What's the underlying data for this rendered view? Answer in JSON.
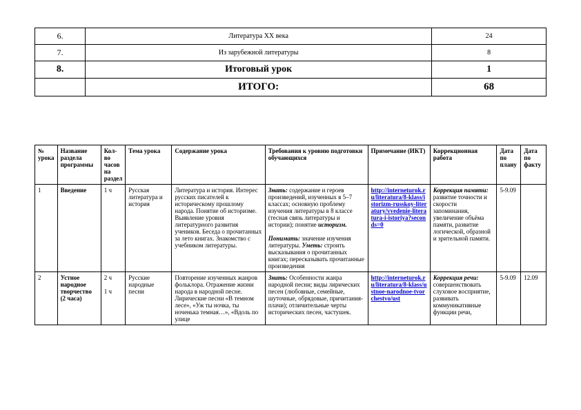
{
  "summary": {
    "rows": [
      {
        "num": "6.",
        "title": "Литература XX века",
        "count": "24",
        "bold": false,
        "small": true
      },
      {
        "num": "7.",
        "title": "Из зарубежной литературы",
        "count": "8",
        "bold": false,
        "small": true
      },
      {
        "num": "8.",
        "title": "Итоговый урок",
        "count": "1",
        "bold": true,
        "big": true
      },
      {
        "num": "",
        "title": "ИТОГО:",
        "count": "68",
        "bold": true,
        "big": true
      }
    ]
  },
  "detail": {
    "headers": [
      "№ урока",
      "Название раздела программы",
      "Кол-во часов на раздел",
      "Тема урока",
      "Содержание урока",
      "Требования к уровню подготовки обучающихся",
      "Примечание (ИКТ)",
      "Коррекционная работа",
      "Дата по плану",
      "Дата по факту"
    ],
    "rows": [
      {
        "num": "1",
        "section": "Введение",
        "hours": "1 ч",
        "topic": "Русская литература и история",
        "content": "Литература и история. Интерес русских писателей к историческому прошлому народа. Понятие об историзме. Выявление уровня литературного развития учеников. Беседа о прочитанных за лето книгах. Знакомство с учебником литературы.",
        "req_html": "<span class='ital'>Знать:</span> содержание и героев произведений, изученных в 5–7 классах; основную проблему изучения литературы в 8 классе (тесная связь литературы и истории); понятие <span class='ital'>историзм.</span><br><br><span class='ital'>Понимать:</span> значение изучения литературы. <span class='ital'>Уметь:</span> строить высказывания о прочитанных книгах; пересказывать прочитанные произведения",
        "ikt": "http://interneturok.ru/literatura/8-klass/istorizm-russkoy-literatury/vvedenie-literatura-i-istoriya?seconds=0",
        "korr_html": "<span class='ital'>Коррекция памяти:</span> развитие точности и скорости запоминания, увеличение объёма памяти, развитие логической, образной и зрительной памяти.",
        "plan": "5-9.09",
        "fact": ""
      },
      {
        "num": "2",
        "section": "Устное народное творчество (2 часа)",
        "hours": "2 ч\n\n1 ч",
        "topic": "Русские народные песни",
        "content": "Повторение изученных жанров фольклора. Отражение жизни народа в народной песне. Лирические песни «В темном лесе», «Уж ты ночка, ты ноченька темная…», «Вдоль по улице",
        "req_html": "<span class='ital'>Знать:</span> Особенности жанра народной песни; виды лирических песен (любовные, семейные, шуточные, обрядовые, причитания-плачи); отличительные черты исторических песен, частушек.",
        "ikt": "http://interneturok.ru/literatura/8-klass/ustnoe-narodnoe-tvorchestvo/ust",
        "korr_html": "<span class='ital'>Коррекция речи:</span> совершенствовать слуховое восприятие, развивать коммуникативные функции речи,",
        "plan": "5-9.09",
        "fact": "12.09"
      }
    ]
  },
  "colors": {
    "link": "#0000cc",
    "border": "#000000",
    "bg": "#ffffff"
  }
}
